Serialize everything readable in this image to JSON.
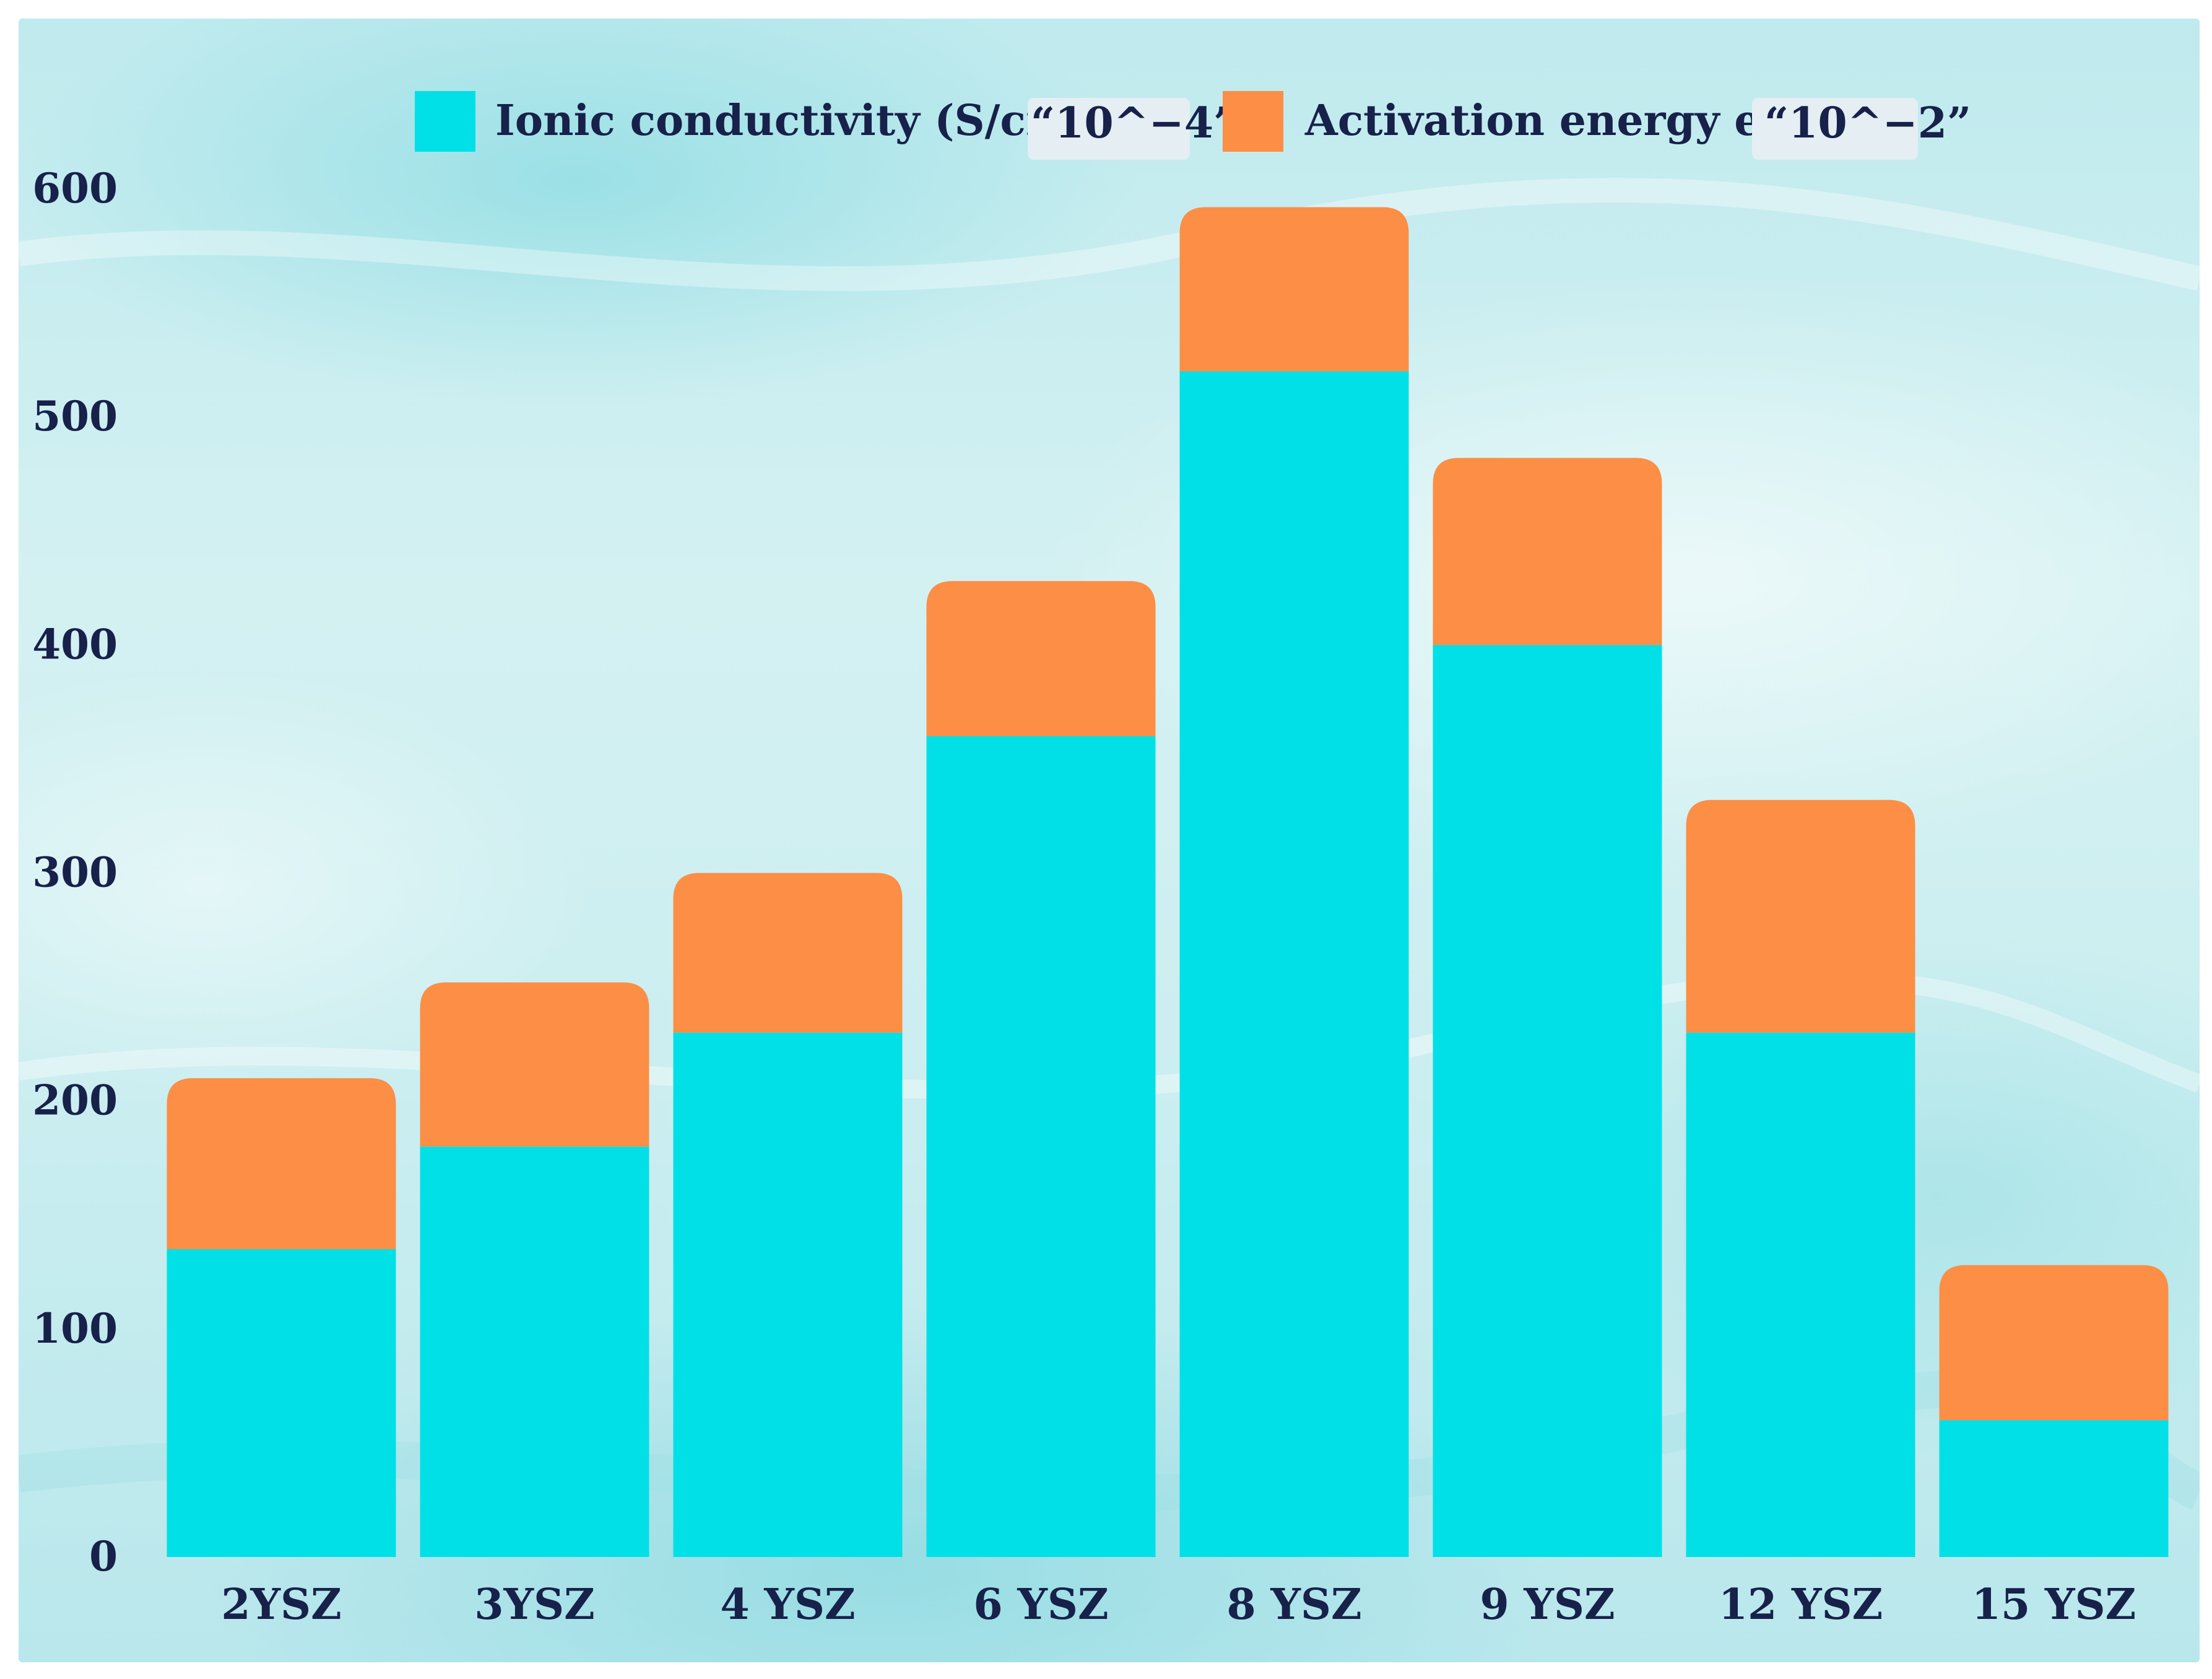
{
  "chart_data": {
    "type": "bar",
    "stacked": true,
    "title": "",
    "xlabel": "",
    "ylabel": "",
    "ylim": [
      0,
      600
    ],
    "yticks": [
      0,
      100,
      200,
      300,
      400,
      500,
      600
    ],
    "categories": [
      "2YSZ",
      "3YSZ",
      "4 YSZ",
      "6 YSZ",
      "8 YSZ",
      "9 YSZ",
      "12 YSZ",
      "15 YSZ"
    ],
    "series": [
      {
        "name": "Ionic conductivity (S/cm)",
        "legend_tag": "“10^−4”",
        "color": "#00e0e6",
        "values": [
          135,
          180,
          230,
          360,
          520,
          400,
          230,
          60
        ]
      },
      {
        "name": "Activation energy eV",
        "legend_tag": "“10^−2”",
        "color": "#fc8e45",
        "values": [
          75,
          72,
          70,
          68,
          72,
          82,
          102,
          68
        ]
      }
    ],
    "legend_position": "top-center",
    "grid": false
  }
}
